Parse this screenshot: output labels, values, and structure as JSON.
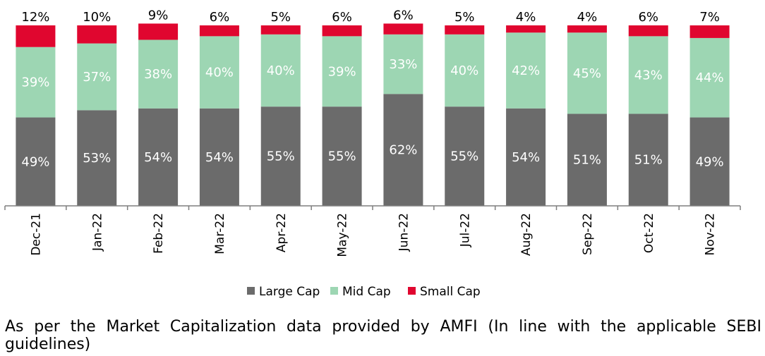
{
  "chart_data": {
    "type": "bar",
    "stacked": true,
    "categories": [
      "Dec-21",
      "Jan-22",
      "Feb-22",
      "Mar-22",
      "Apr-22",
      "May-22",
      "Jun-22",
      "Jul-22",
      "Aug-22",
      "Sep-22",
      "Oct-22",
      "Nov-22"
    ],
    "series": [
      {
        "name": "Large Cap",
        "values": [
          49,
          53,
          54,
          54,
          55,
          55,
          62,
          55,
          54,
          51,
          51,
          49
        ],
        "labels": [
          "49%",
          "53%",
          "54%",
          "54%",
          "55%",
          "55%",
          "62%",
          "55%",
          "54%",
          "51%",
          "51%",
          "49%"
        ],
        "color": "#6b6b6b"
      },
      {
        "name": "Mid Cap",
        "values": [
          39,
          37,
          38,
          40,
          40,
          39,
          33,
          40,
          42,
          45,
          43,
          44
        ],
        "labels": [
          "39%",
          "37%",
          "38%",
          "40%",
          "40%",
          "39%",
          "33%",
          "40%",
          "42%",
          "45%",
          "43%",
          "44%"
        ],
        "color": "#9dd6b3"
      },
      {
        "name": "Small Cap",
        "values": [
          12,
          10,
          9,
          6,
          5,
          6,
          6,
          5,
          4,
          4,
          6,
          7
        ],
        "labels": [
          "12%",
          "10%",
          "9%",
          "6%",
          "5%",
          "6%",
          "6%",
          "5%",
          "4%",
          "4%",
          "6%",
          "7%"
        ],
        "color": "#e0062f"
      }
    ],
    "ylim": [
      0,
      100
    ],
    "grid": false,
    "legend": "bottom-center"
  },
  "footnote": "As per the Market Capitalization data provided by AMFI (In line with the applicable SEBI guidelines)"
}
